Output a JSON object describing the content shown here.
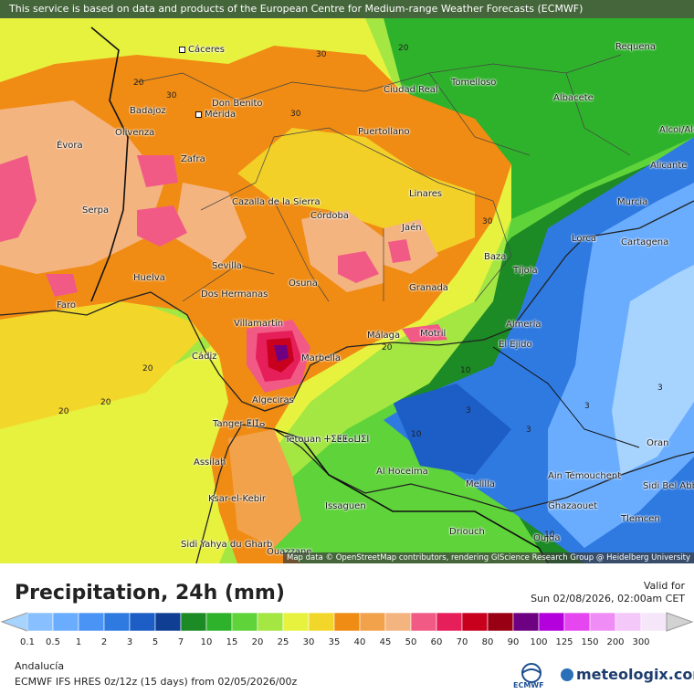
{
  "banner": "This service is based on data and products of the European Centre for Medium-range Weather Forecasts (ECMWF)",
  "attribution": "Map data © OpenStreetMap contributors, rendering GIScience Research Group @ Heidelberg University",
  "cities": [
    "Cáceres",
    "Don Benito",
    "Mérida",
    "Badajoz",
    "Olivenza",
    "Évora",
    "Zafra",
    "Serpa",
    "Ciudad Real",
    "Puertollano",
    "Tomelloso",
    "Albacete",
    "Requena",
    "Linares",
    "Jaén",
    "Córdoba",
    "Cazalla de la Sierra",
    "Sevilla",
    "Dos Hermanas",
    "Huelva",
    "Faro",
    "Osuna",
    "Villamartín",
    "Marbella",
    "Málaga",
    "Motril",
    "Granada",
    "Baza",
    "Tíjola",
    "Almería",
    "El Ejido",
    "Lorca",
    "Murcia",
    "Cartagena",
    "Cádiz",
    "Algeciras",
    "Tanger ⵟⵏⵊⴰ",
    "Tetouan ⵜⵉⵟⵟⴰⵡⵉⵏ",
    "Assilah",
    "Ksar-el-Kebir",
    "Sidi Yahya du Gharb",
    "Ouazzane",
    "Issaguen",
    "Al Hoceima",
    "Melilla",
    "Ain Témouchent",
    "Sidi Bel Abbès",
    "Ghazaouet",
    "Tlemcen",
    "Oujda",
    "Driouch",
    "Oran",
    "Alicante",
    "Alcoi/Alcoy"
  ],
  "contour_labels": [
    "30",
    "20",
    "30",
    "30",
    "20",
    "30",
    "20",
    "20",
    "20",
    "20",
    "10",
    "10",
    "10",
    "3",
    "3",
    "3",
    "3"
  ],
  "legend": {
    "title": "Precipitation, 24h (mm)",
    "valid_for": "Valid for",
    "valid_time": "Sun 02/08/2026, 02:00am CET",
    "levels": [
      "0.1",
      "0.5",
      "1",
      "2",
      "3",
      "5",
      "7",
      "10",
      "15",
      "20",
      "25",
      "30",
      "35",
      "40",
      "45",
      "50",
      "60",
      "70",
      "80",
      "90",
      "100",
      "125",
      "150",
      "200",
      "300"
    ],
    "colors": [
      "#a7d3ff",
      "#88c0ff",
      "#6aadff",
      "#4a94f5",
      "#2f7ae0",
      "#1c5dc6",
      "#103e93",
      "#1c8a25",
      "#2fb22b",
      "#5fd33a",
      "#a4e642",
      "#e7f23f",
      "#f2d72a",
      "#f08c14",
      "#f2a24a",
      "#f4b480",
      "#f25a86",
      "#e61e5a",
      "#c8001e",
      "#9a0014",
      "#6e0082",
      "#b400dc",
      "#e646f0",
      "#f08cf5",
      "#f5c8fa",
      "#f5e6fa",
      "#d2d2d2"
    ],
    "region": "Andalucía",
    "model": "ECMWF IFS HRES 0z/12z (15 days) from 02/05/2026/00z",
    "ecmwf_logo_text": "ECMWF",
    "brand": "meteologix.com"
  }
}
